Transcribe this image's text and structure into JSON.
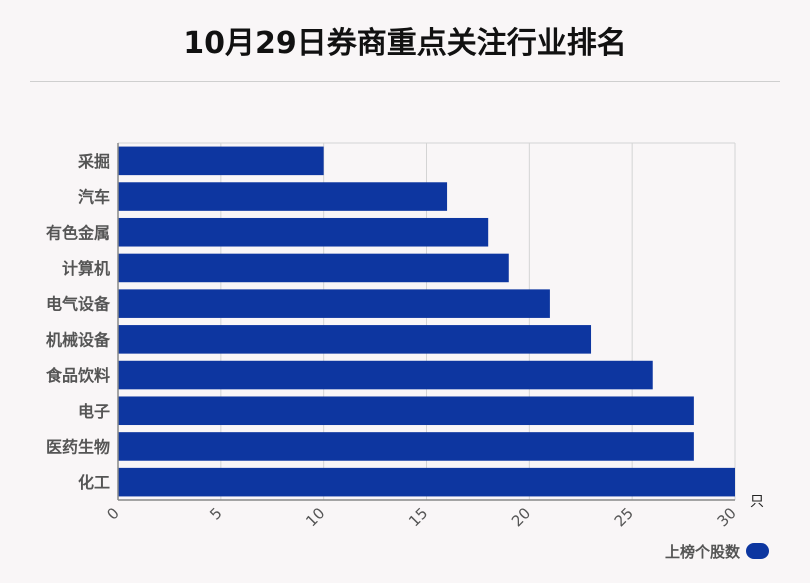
{
  "title": "10月29日券商重点关注行业排名",
  "colors": {
    "bar": "#0d36a0",
    "background": "#f9f6f7",
    "grid": "#d4d4d4",
    "axis": "#888888"
  },
  "chart_data": {
    "type": "bar",
    "orientation": "horizontal",
    "title": "10月29日券商重点关注行业排名",
    "categories": [
      "采掘",
      "汽车",
      "有色金属",
      "计算机",
      "电气设备",
      "机械设备",
      "食品饮料",
      "电子",
      "医药生物",
      "化工"
    ],
    "series": [
      {
        "name": "上榜个股数",
        "values": [
          10,
          16,
          18,
          19,
          21,
          23,
          26,
          28,
          28,
          30
        ]
      }
    ],
    "xlim": [
      0,
      30
    ],
    "xticks": [
      "0",
      "5",
      "10",
      "15",
      "20",
      "25",
      "30"
    ],
    "xunit": "只",
    "grid": true,
    "legend_position": "bottom-right"
  }
}
